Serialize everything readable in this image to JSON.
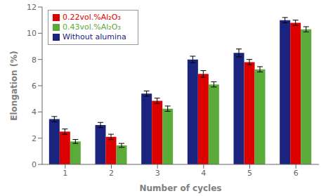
{
  "chart_data": {
    "type": "bar",
    "categories": [
      1,
      2,
      3,
      4,
      5,
      6
    ],
    "series": [
      {
        "name": "Without alumina",
        "color": "#1a237e",
        "values": [
          3.45,
          3.0,
          5.4,
          8.0,
          8.5,
          11.0
        ],
        "errors": [
          0.2,
          0.2,
          0.2,
          0.25,
          0.3,
          0.2
        ]
      },
      {
        "name": "0.22vol.%Al₂O₃",
        "color": "#dd0000",
        "values": [
          2.5,
          2.1,
          4.85,
          6.9,
          7.8,
          10.8
        ],
        "errors": [
          0.2,
          0.2,
          0.2,
          0.25,
          0.2,
          0.2
        ]
      },
      {
        "name": "0.43vol.%Al₂O₃",
        "color": "#5aab3a",
        "values": [
          1.75,
          1.45,
          4.25,
          6.1,
          7.25,
          10.3
        ],
        "errors": [
          0.15,
          0.15,
          0.2,
          0.2,
          0.2,
          0.2
        ]
      }
    ],
    "xlabel": "Number of cycles",
    "ylabel": "Elongation (%)",
    "ylim": [
      0,
      12
    ],
    "yticks": [
      0,
      2,
      4,
      6,
      8,
      10,
      12
    ],
    "grid": false,
    "legend": "upper left"
  }
}
